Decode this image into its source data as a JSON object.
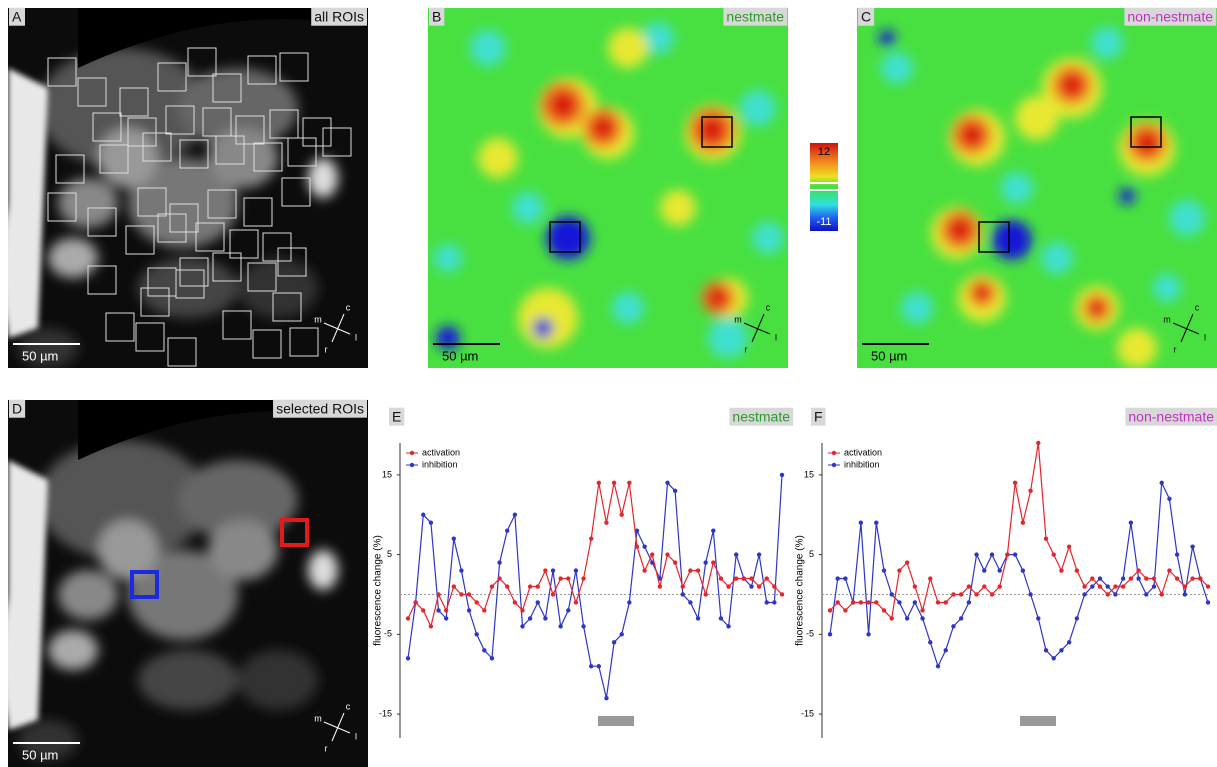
{
  "image_panels": [
    {
      "letter": "A",
      "label": "all ROIs",
      "scale_bar": "50 µm",
      "orientation": [
        "m",
        "c",
        "l",
        "r"
      ]
    },
    {
      "letter": "B",
      "label": "nestmate",
      "scale_bar": "50 µm",
      "orientation": [
        "m",
        "c",
        "l",
        "r"
      ]
    },
    {
      "letter": "C",
      "label": "non-nestmate",
      "scale_bar": "50 µm",
      "orientation": [
        "m",
        "c",
        "l",
        "r"
      ]
    },
    {
      "letter": "D",
      "label": "selected ROIs",
      "scale_bar": "50 µm",
      "orientation": [
        "m",
        "c",
        "l",
        "r"
      ]
    }
  ],
  "colorbar": {
    "max": 12,
    "min": -11
  },
  "chart_data": [
    {
      "type": "line",
      "letter": "E",
      "title": "nestmate",
      "ylabel": "fluorescence change (%)",
      "ylim": [
        -18,
        19
      ],
      "yticks": [
        -15,
        -5,
        5,
        15
      ],
      "series": [
        {
          "name": "activation",
          "color": "#e3262b",
          "values": [
            -3,
            -1,
            -2,
            -4,
            0,
            -2,
            1,
            0,
            0,
            -1,
            -2,
            1,
            2,
            1,
            -1,
            -2,
            1,
            1,
            3,
            0,
            2,
            2,
            -1,
            2,
            7,
            14,
            9,
            14,
            10,
            14,
            6,
            3,
            5,
            1,
            5,
            4,
            1,
            3,
            3,
            0,
            4,
            2,
            1,
            2,
            2,
            2,
            1,
            2,
            1,
            0
          ]
        },
        {
          "name": "inhibition",
          "color": "#2d36c6",
          "values": [
            -8,
            -1,
            10,
            9,
            -2,
            -3,
            7,
            3,
            -2,
            -5,
            -7,
            -8,
            4,
            8,
            10,
            -4,
            -3,
            -1,
            -3,
            3,
            -4,
            -2,
            3,
            -4,
            -9,
            -9,
            -13,
            -6,
            -5,
            -1,
            8,
            6,
            4,
            2,
            14,
            13,
            0,
            -1,
            -3,
            4,
            8,
            -3,
            -4,
            5,
            2,
            1,
            5,
            -1,
            -1,
            15
          ]
        }
      ]
    },
    {
      "type": "line",
      "letter": "F",
      "title": "non-nestmate",
      "ylabel": "fluorescence change (%)",
      "ylim": [
        -18,
        19
      ],
      "yticks": [
        -15,
        -5,
        5,
        15
      ],
      "series": [
        {
          "name": "activation",
          "color": "#e3262b",
          "values": [
            -2,
            -1,
            -2,
            -1,
            -1,
            -1,
            -1,
            -2,
            -3,
            3,
            4,
            1,
            -2,
            2,
            -1,
            -1,
            0,
            0,
            1,
            0,
            1,
            0,
            1,
            5,
            14,
            9,
            13,
            19,
            7,
            5,
            3,
            6,
            3,
            1,
            2,
            1,
            0,
            1,
            1,
            2,
            3,
            2,
            2,
            0,
            3,
            2,
            1,
            2,
            2,
            1
          ]
        },
        {
          "name": "inhibition",
          "color": "#2d36c6",
          "values": [
            -5,
            2,
            2,
            -1,
            9,
            -5,
            9,
            3,
            0,
            -1,
            -3,
            -1,
            -3,
            -6,
            -9,
            -7,
            -4,
            -3,
            -1,
            5,
            3,
            5,
            3,
            5,
            5,
            3,
            0,
            -3,
            -7,
            -8,
            -7,
            -6,
            -3,
            0,
            1,
            2,
            1,
            0,
            2,
            9,
            2,
            0,
            1,
            14,
            12,
            5,
            0,
            6,
            2,
            -1
          ]
        }
      ]
    }
  ]
}
